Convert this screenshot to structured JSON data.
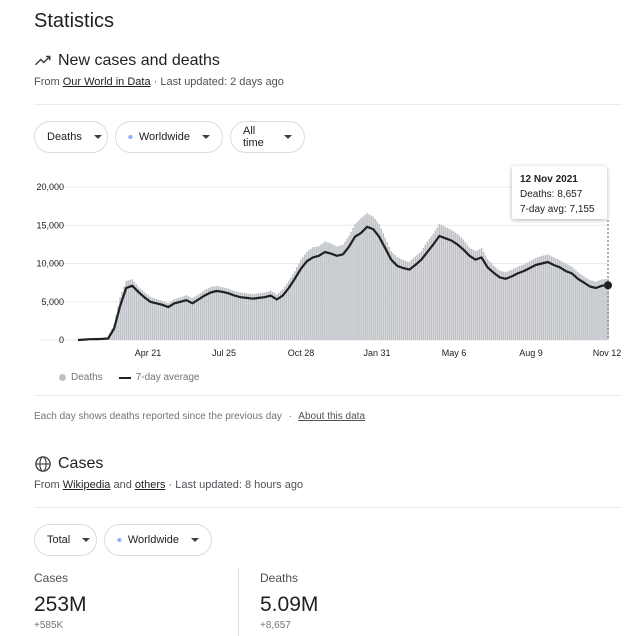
{
  "page": {
    "title": "Statistics"
  },
  "cases_deaths": {
    "title": "New cases and deaths",
    "source_prefix": "From",
    "source_link": "Our World in Data",
    "updated": "· Last updated: 2 days ago",
    "filters": {
      "metric": "Deaths",
      "region": "Worldwide",
      "range": "All time"
    },
    "tooltip": {
      "date": "12 Nov 2021",
      "deaths": "Deaths: 8,657",
      "avg": "7-day avg: 7,155"
    },
    "legend": {
      "bars": "Deaths",
      "line": "7-day average"
    },
    "note": "Each day shows deaths reported since the previous day",
    "note_sep": "·",
    "note_link": "About this data",
    "icon": "trending-up-icon"
  },
  "chart_data": {
    "type": "bar",
    "xlabel": "",
    "ylabel": "",
    "ylim": [
      0,
      20000
    ],
    "yticks": [
      0,
      5000,
      10000,
      15000,
      20000
    ],
    "ytick_labels": [
      "0",
      "5,000",
      "10,000",
      "15,000",
      "20,000"
    ],
    "xtick_labels": [
      "Apr 21",
      "Jul 25",
      "Oct 28",
      "Jan 31",
      "May 6",
      "Aug 9",
      "Nov 12"
    ],
    "grid": true,
    "legend_position": "bottom-left",
    "series": [
      {
        "name": "Deaths",
        "kind": "bar",
        "color": "#bdc1c6"
      },
      {
        "name": "7-day average",
        "kind": "line",
        "color": "#202124"
      }
    ],
    "weekly_average": [
      0,
      50,
      100,
      120,
      150,
      200,
      1500,
      4500,
      6800,
      7100,
      6300,
      5600,
      5000,
      4800,
      4600,
      4300,
      4800,
      5000,
      5200,
      4800,
      5300,
      5800,
      6200,
      6400,
      6300,
      6100,
      5800,
      5600,
      5500,
      5400,
      5500,
      5600,
      5800,
      5300,
      5800,
      6800,
      8000,
      9300,
      10300,
      10800,
      11000,
      11500,
      11300,
      11000,
      11200,
      12200,
      13500,
      14000,
      14800,
      14500,
      13500,
      12000,
      10500,
      9700,
      9400,
      9200,
      9800,
      10500,
      11500,
      12500,
      13600,
      13300,
      13000,
      12500,
      11800,
      11000,
      10500,
      10800,
      9500,
      8800,
      8200,
      8000,
      8300,
      8700,
      9000,
      9400,
      9800,
      10000,
      10200,
      9800,
      9500,
      9000,
      8700,
      8000,
      7500,
      7000,
      6800,
      7100,
      7155
    ],
    "weekly_peak_deaths": [
      0,
      80,
      150,
      200,
      300,
      400,
      2500,
      6500,
      8500,
      8600,
      7500,
      6800,
      6200,
      5800,
      5500,
      5200,
      5800,
      6000,
      6400,
      6000,
      6500,
      7100,
      7500,
      7600,
      7400,
      7200,
      6900,
      6700,
      6600,
      6500,
      6600,
      6700,
      7000,
      6500,
      7300,
      8500,
      9800,
      11500,
      12500,
      13200,
      13300,
      14000,
      13700,
      13200,
      13500,
      14800,
      16500,
      17500,
      18000,
      17500,
      16500,
      14500,
      12500,
      11800,
      11300,
      11000,
      11800,
      12500,
      14000,
      15000,
      16500,
      16000,
      15500,
      15000,
      14200,
      13000,
      12500,
      13000,
      11500,
      10500,
      9800,
      9600,
      9900,
      10300,
      10600,
      11000,
      11500,
      11800,
      12000,
      11600,
      11200,
      10800,
      10300,
      9600,
      9000,
      8500,
      8300,
      8600,
      8657
    ]
  },
  "cases": {
    "title": "Cases",
    "source_prefix": "From",
    "link1": "Wikipedia",
    "and": "and",
    "link2": "others",
    "updated": "· Last updated: 8 hours ago",
    "filters": {
      "type": "Total",
      "region": "Worldwide"
    },
    "stats": [
      {
        "label": "Cases",
        "value": "253M",
        "delta": "+585K"
      },
      {
        "label": "Deaths",
        "value": "5.09M",
        "delta": "+8,657"
      }
    ],
    "icon": "globe-icon"
  }
}
